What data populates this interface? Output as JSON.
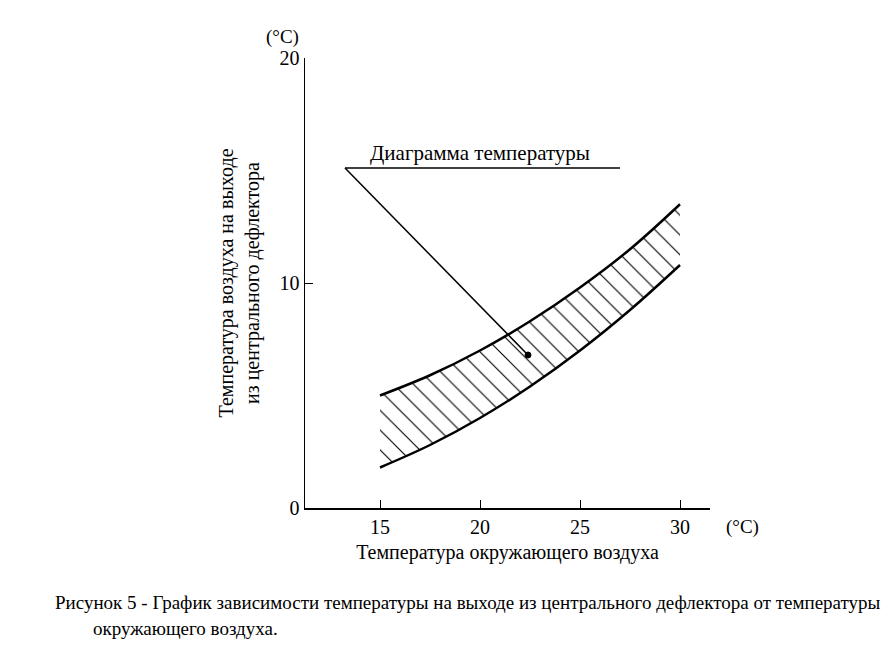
{
  "chart_data": {
    "type": "area",
    "xlabel": "Температура окружающего воздуха",
    "ylabel": [
      "Температура воздуха на выходе",
      "из центрального дефлектора"
    ],
    "xunit": "(°C)",
    "yunit": "(°C)",
    "annotation": "Диаграмма температуры",
    "caption": "Рисунок 5 - График зависимости температуры на выходе из центрального дефлектора от температуры окружающего воздуха.",
    "x": [
      15,
      17.5,
      20,
      22.5,
      25,
      27.5,
      30
    ],
    "series": [
      {
        "values": [
          5.0,
          5.9,
          7.0,
          8.3,
          9.8,
          11.5,
          13.5
        ],
        "color": "#000000"
      },
      {
        "values": [
          1.8,
          2.8,
          4.0,
          5.4,
          7.0,
          8.8,
          10.8
        ],
        "color": "#000000"
      }
    ],
    "xlim": [
      11.25,
      31.5
    ],
    "ylim": [
      0,
      20
    ],
    "xticks": [
      15,
      20,
      25,
      30
    ],
    "yticks": [
      0,
      10,
      20
    ],
    "grid": false
  }
}
